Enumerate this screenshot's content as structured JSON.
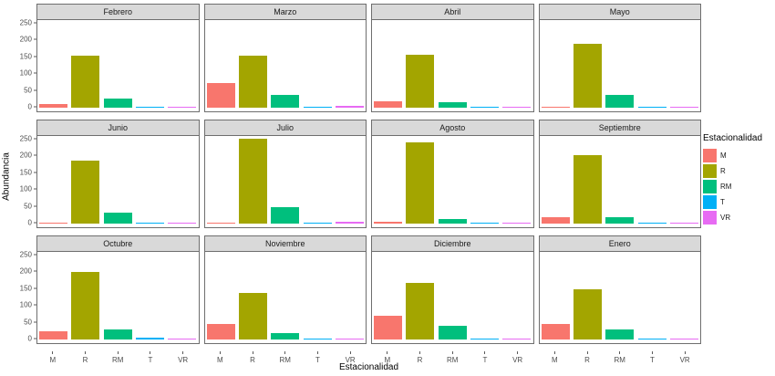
{
  "chart_data": {
    "type": "bar",
    "title": "",
    "xlabel": "Estacionalidad",
    "ylabel": "Abundancia",
    "yticks": [
      0,
      50,
      100,
      150,
      200,
      250
    ],
    "ylim": [
      0,
      265
    ],
    "grid": "off",
    "facet_layout": {
      "rows": 3,
      "cols": 4
    },
    "categories": [
      "M",
      "R",
      "RM",
      "T",
      "VR"
    ],
    "colors": {
      "M": "#F8766D",
      "R": "#A3A500",
      "RM": "#00BF7D",
      "T": "#00B0F6",
      "VR": "#E76BF3"
    },
    "facets": [
      {
        "name": "Febrero",
        "values": [
          12,
          155,
          27,
          2,
          2
        ]
      },
      {
        "name": "Marzo",
        "values": [
          74,
          155,
          38,
          2,
          5
        ]
      },
      {
        "name": "Abril",
        "values": [
          20,
          157,
          17,
          2,
          4
        ]
      },
      {
        "name": "Mayo",
        "values": [
          2,
          190,
          38,
          2,
          2
        ]
      },
      {
        "name": "Junio",
        "values": [
          3,
          188,
          33,
          3,
          2
        ]
      },
      {
        "name": "Julio",
        "values": [
          3,
          252,
          48,
          3,
          5
        ]
      },
      {
        "name": "Agosto",
        "values": [
          5,
          243,
          13,
          3,
          3
        ]
      },
      {
        "name": "Septiembre",
        "values": [
          18,
          203,
          20,
          3,
          3
        ]
      },
      {
        "name": "Octubre",
        "values": [
          25,
          200,
          30,
          5,
          2
        ]
      },
      {
        "name": "Noviembre",
        "values": [
          45,
          138,
          20,
          2,
          2
        ]
      },
      {
        "name": "Diciembre",
        "values": [
          70,
          168,
          40,
          2,
          2
        ]
      },
      {
        "name": "Enero",
        "values": [
          45,
          150,
          30,
          2,
          2
        ]
      }
    ],
    "legend": {
      "title": "Estacionalidad",
      "position": "right",
      "entries": [
        {
          "label": "M",
          "color": "#F8766D"
        },
        {
          "label": "R",
          "color": "#A3A500"
        },
        {
          "label": "RM",
          "color": "#00BF7D"
        },
        {
          "label": "T",
          "color": "#00B0F6"
        },
        {
          "label": "VR",
          "color": "#E76BF3"
        }
      ]
    },
    "style": {
      "strip_fill": "#d9d9d9",
      "panel_border": "#6e6e6e",
      "background": "#ffffff"
    }
  }
}
